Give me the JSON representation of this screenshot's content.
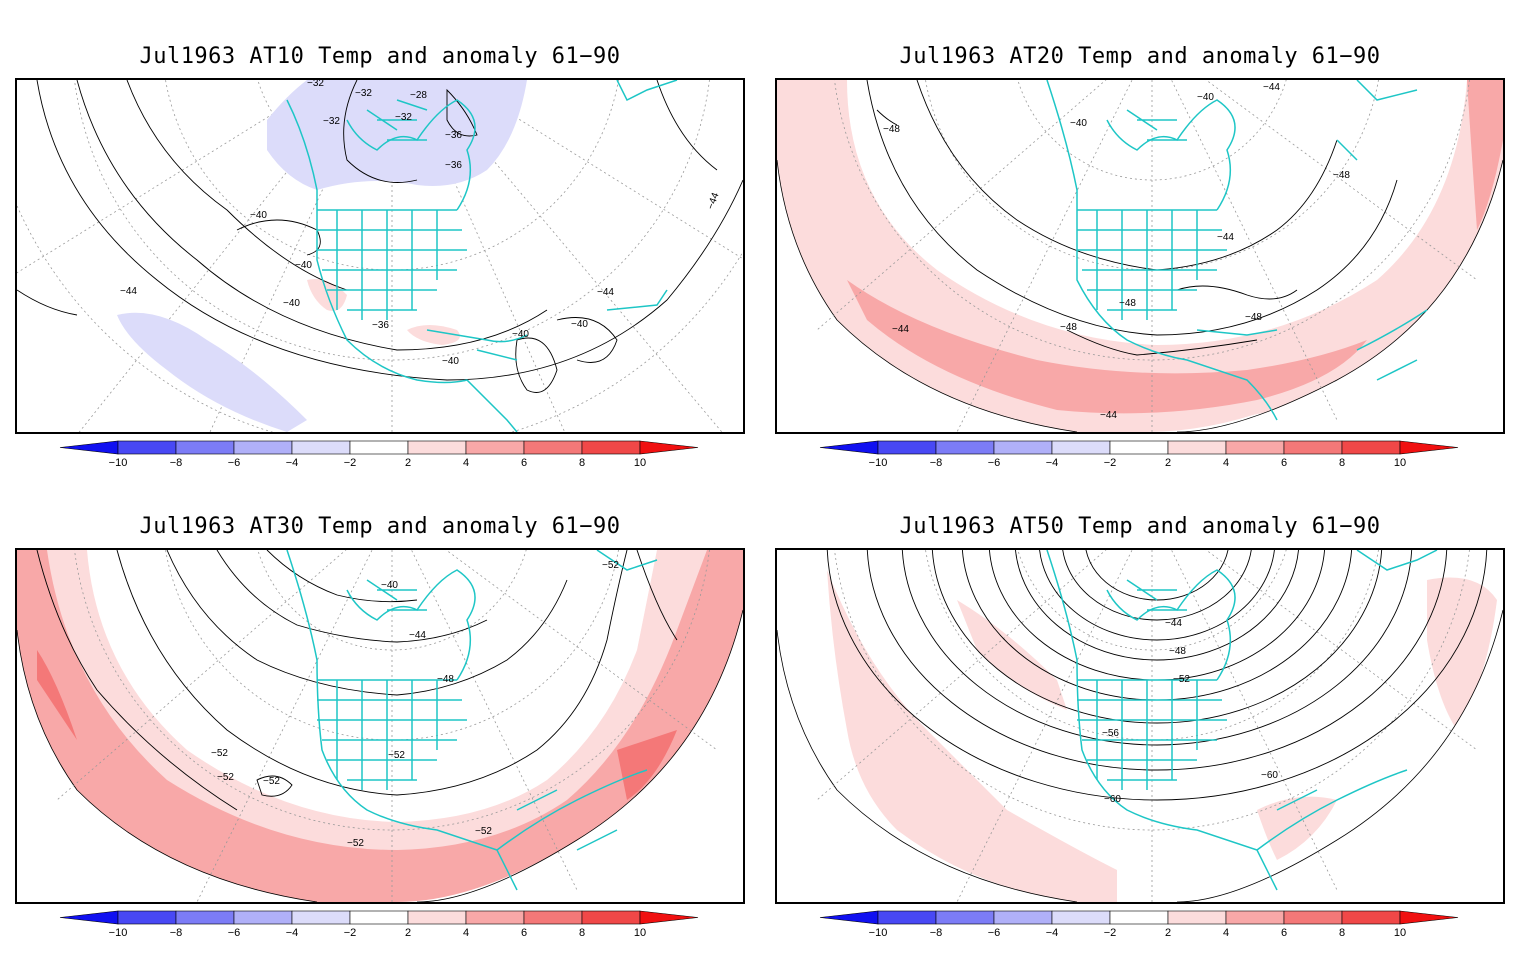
{
  "colorbar": {
    "colors": [
      "#1010f0",
      "#4848f4",
      "#7c7cf6",
      "#b0b0f8",
      "#dcdcfa",
      "#ffffff",
      "#fcdcdc",
      "#f8a8a8",
      "#f47878",
      "#f04848",
      "#f01010"
    ],
    "tick_labels": [
      "−10",
      "−8",
      "−6",
      "−4",
      "−2",
      "2",
      "4",
      "6",
      "8",
      "10"
    ],
    "tick_values": [
      -10,
      -8,
      -6,
      -4,
      -2,
      2,
      4,
      6,
      8,
      10
    ]
  },
  "palette": {
    "coast": "#1ec6c6",
    "neg_anomaly": "#dcdcfa",
    "pos_anomaly_light": "#fcdcdc",
    "pos_anomaly_mid": "#f8a8a8",
    "pos_anomaly_strong": "#f47878"
  },
  "panels": [
    {
      "id": "at10",
      "title": "Jul1963 AT10 Temp and anomaly 61−90",
      "contour_labels": [
        "−32",
        "−32",
        "−28",
        "−32",
        "−32",
        "−36",
        "−36",
        "−40",
        "−40",
        "−40",
        "−44",
        "−36",
        "−40",
        "−40",
        "−40",
        "−44",
        "−44"
      ]
    },
    {
      "id": "at20",
      "title": "Jul1963 AT20 Temp and anomaly 61−90",
      "contour_labels": [
        "−48",
        "−40",
        "−40",
        "−44",
        "−44",
        "−48",
        "−48",
        "−48",
        "−44",
        "−48",
        "−44"
      ]
    },
    {
      "id": "at30",
      "title": "Jul1963 AT30 Temp and anomaly 61−90",
      "contour_labels": [
        "−40",
        "−44",
        "−48",
        "−52",
        "−52",
        "−52",
        "−52",
        "−52",
        "−52",
        "−52"
      ]
    },
    {
      "id": "at50",
      "title": "Jul1963 AT50 Temp and anomaly 61−90",
      "contour_labels": [
        "−44",
        "−48",
        "−52",
        "−56",
        "−60",
        "−60"
      ]
    }
  ]
}
